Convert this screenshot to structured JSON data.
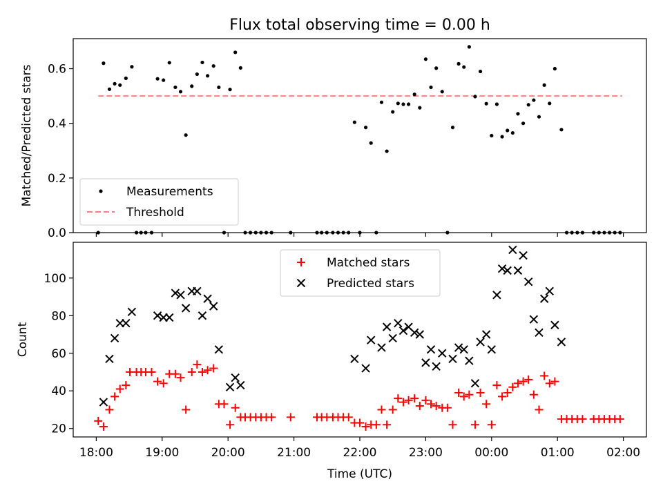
{
  "title": "Flux total observing time = 0.00 h",
  "chart_data": [
    {
      "type": "scatter",
      "panel": "top",
      "ylabel": "Matched/Predicted stars",
      "xlabel": "",
      "x_unit": "hours after 18:00 UTC",
      "xlim": [
        -0.35,
        8.35
      ],
      "ylim": [
        0,
        0.71
      ],
      "yticks": [
        0.0,
        0.2,
        0.4,
        0.6
      ],
      "ytick_labels": [
        "0.0",
        "0.2",
        "0.4",
        "0.6"
      ],
      "legend": "lower-left",
      "series": [
        {
          "name": "Measurements",
          "marker": "dot",
          "color": "#000000",
          "points": [
            [
              0.03,
              0.0
            ],
            [
              0.11,
              0.62
            ],
            [
              0.2,
              0.525
            ],
            [
              0.28,
              0.545
            ],
            [
              0.36,
              0.54
            ],
            [
              0.45,
              0.565
            ],
            [
              0.54,
              0.607
            ],
            [
              0.61,
              0.0
            ],
            [
              0.68,
              0.0
            ],
            [
              0.75,
              0.0
            ],
            [
              0.84,
              0.0
            ],
            [
              0.93,
              0.563
            ],
            [
              1.02,
              0.558
            ],
            [
              1.11,
              0.622
            ],
            [
              1.2,
              0.532
            ],
            [
              1.28,
              0.516
            ],
            [
              1.36,
              0.357
            ],
            [
              1.45,
              0.536
            ],
            [
              1.53,
              0.58
            ],
            [
              1.61,
              0.623
            ],
            [
              1.69,
              0.574
            ],
            [
              1.78,
              0.61
            ],
            [
              1.86,
              0.532
            ],
            [
              1.94,
              0.0
            ],
            [
              2.03,
              0.524
            ],
            [
              2.11,
              0.66
            ],
            [
              2.19,
              0.603
            ],
            [
              2.26,
              0.0
            ],
            [
              2.34,
              0.0
            ],
            [
              2.42,
              0.0
            ],
            [
              2.5,
              0.0
            ],
            [
              2.58,
              0.0
            ],
            [
              2.66,
              0.0
            ],
            [
              2.95,
              0.0
            ],
            [
              3.35,
              0.0
            ],
            [
              3.42,
              0.0
            ],
            [
              3.5,
              0.0
            ],
            [
              3.59,
              0.0
            ],
            [
              3.67,
              0.0
            ],
            [
              3.75,
              0.0
            ],
            [
              3.83,
              0.0
            ],
            [
              3.92,
              0.404
            ],
            [
              4.0,
              0.0
            ],
            [
              4.09,
              0.385
            ],
            [
              4.17,
              0.328
            ],
            [
              4.25,
              0.0
            ],
            [
              4.33,
              0.477
            ],
            [
              4.41,
              0.298
            ],
            [
              4.5,
              0.442
            ],
            [
              4.58,
              0.473
            ],
            [
              4.66,
              0.47
            ],
            [
              4.74,
              0.47
            ],
            [
              4.83,
              0.506
            ],
            [
              4.91,
              0.457
            ],
            [
              5.0,
              0.635
            ],
            [
              5.08,
              0.532
            ],
            [
              5.16,
              0.602
            ],
            [
              5.25,
              0.516
            ],
            [
              5.33,
              0.0
            ],
            [
              5.41,
              0.385
            ],
            [
              5.5,
              0.618
            ],
            [
              5.58,
              0.606
            ],
            [
              5.66,
              0.68
            ],
            [
              5.75,
              0.498
            ],
            [
              5.83,
              0.59
            ],
            [
              5.92,
              0.472
            ],
            [
              6.0,
              0.355
            ],
            [
              6.08,
              0.47
            ],
            [
              6.16,
              0.351
            ],
            [
              6.24,
              0.374
            ],
            [
              6.32,
              0.365
            ],
            [
              6.4,
              0.435
            ],
            [
              6.48,
              0.4
            ],
            [
              6.56,
              0.468
            ],
            [
              6.64,
              0.485
            ],
            [
              6.72,
              0.424
            ],
            [
              6.8,
              0.54
            ],
            [
              6.88,
              0.473
            ],
            [
              6.96,
              0.6
            ],
            [
              7.06,
              0.377
            ],
            [
              7.14,
              0.0
            ],
            [
              7.22,
              0.0
            ],
            [
              7.3,
              0.0
            ],
            [
              7.38,
              0.0
            ],
            [
              7.55,
              0.0
            ],
            [
              7.63,
              0.0
            ],
            [
              7.71,
              0.0
            ],
            [
              7.79,
              0.0
            ],
            [
              7.87,
              0.0
            ],
            [
              7.95,
              0.0
            ]
          ]
        },
        {
          "name": "Threshold",
          "line_style": "dashed",
          "color": "#ff7f7f",
          "x": [
            0.03,
            7.98
          ],
          "y": [
            0.5,
            0.5
          ]
        }
      ]
    },
    {
      "type": "scatter",
      "panel": "bottom",
      "ylabel": "Count",
      "xlabel": "Time (UTC)",
      "x_unit": "hours after 18:00 UTC",
      "xlim": [
        -0.35,
        8.35
      ],
      "ylim": [
        15.5,
        119
      ],
      "yticks": [
        20,
        40,
        60,
        80,
        100
      ],
      "ytick_labels": [
        "20",
        "40",
        "60",
        "80",
        "100"
      ],
      "xticks": [
        0,
        1,
        2,
        3,
        4,
        5,
        6,
        7,
        8
      ],
      "xtick_labels": [
        "18:00",
        "19:00",
        "20:00",
        "21:00",
        "22:00",
        "23:00",
        "00:00",
        "01:00",
        "02:00"
      ],
      "legend": "upper-center",
      "series": [
        {
          "name": "Matched stars",
          "marker": "plus",
          "color": "#ff0000",
          "points": [
            [
              0.03,
              24
            ],
            [
              0.11,
              21
            ],
            [
              0.2,
              30
            ],
            [
              0.28,
              37
            ],
            [
              0.36,
              41
            ],
            [
              0.45,
              43
            ],
            [
              0.51,
              50
            ],
            [
              0.61,
              50
            ],
            [
              0.68,
              50
            ],
            [
              0.75,
              50
            ],
            [
              0.84,
              50
            ],
            [
              0.93,
              45
            ],
            [
              1.02,
              44
            ],
            [
              1.11,
              49
            ],
            [
              1.2,
              49
            ],
            [
              1.28,
              47
            ],
            [
              1.36,
              30
            ],
            [
              1.45,
              50
            ],
            [
              1.53,
              54
            ],
            [
              1.61,
              50
            ],
            [
              1.69,
              51
            ],
            [
              1.78,
              52
            ],
            [
              1.86,
              33
            ],
            [
              1.94,
              33
            ],
            [
              2.03,
              22
            ],
            [
              2.11,
              31
            ],
            [
              2.19,
              26
            ],
            [
              2.26,
              26
            ],
            [
              2.34,
              26
            ],
            [
              2.42,
              26
            ],
            [
              2.5,
              26
            ],
            [
              2.58,
              26
            ],
            [
              2.66,
              26
            ],
            [
              2.95,
              26
            ],
            [
              3.35,
              26
            ],
            [
              3.42,
              26
            ],
            [
              3.5,
              26
            ],
            [
              3.59,
              26
            ],
            [
              3.67,
              26
            ],
            [
              3.75,
              26
            ],
            [
              3.83,
              26
            ],
            [
              3.92,
              23
            ],
            [
              4.0,
              23
            ],
            [
              4.09,
              21
            ],
            [
              4.17,
              22
            ],
            [
              4.25,
              22
            ],
            [
              4.33,
              30
            ],
            [
              4.41,
              22
            ],
            [
              4.5,
              30
            ],
            [
              4.58,
              36
            ],
            [
              4.66,
              34
            ],
            [
              4.74,
              35
            ],
            [
              4.83,
              36
            ],
            [
              4.91,
              32
            ],
            [
              5.0,
              35
            ],
            [
              5.08,
              33
            ],
            [
              5.16,
              32
            ],
            [
              5.25,
              31
            ],
            [
              5.33,
              31
            ],
            [
              5.41,
              22
            ],
            [
              5.5,
              39
            ],
            [
              5.58,
              37
            ],
            [
              5.66,
              38
            ],
            [
              5.75,
              22
            ],
            [
              5.83,
              39
            ],
            [
              5.92,
              33
            ],
            [
              6.0,
              22
            ],
            [
              6.08,
              43
            ],
            [
              6.16,
              37
            ],
            [
              6.24,
              39
            ],
            [
              6.32,
              42
            ],
            [
              6.4,
              44
            ],
            [
              6.48,
              45
            ],
            [
              6.56,
              46
            ],
            [
              6.64,
              38
            ],
            [
              6.72,
              30
            ],
            [
              6.8,
              48
            ],
            [
              6.88,
              44
            ],
            [
              6.96,
              45
            ],
            [
              7.06,
              25
            ],
            [
              7.14,
              25
            ],
            [
              7.22,
              25
            ],
            [
              7.3,
              25
            ],
            [
              7.38,
              25
            ],
            [
              7.55,
              25
            ],
            [
              7.63,
              25
            ],
            [
              7.71,
              25
            ],
            [
              7.79,
              25
            ],
            [
              7.87,
              25
            ],
            [
              7.95,
              25
            ]
          ]
        },
        {
          "name": "Predicted stars",
          "marker": "x",
          "color": "#000000",
          "points": [
            [
              0.11,
              34
            ],
            [
              0.2,
              57
            ],
            [
              0.28,
              68
            ],
            [
              0.36,
              76
            ],
            [
              0.45,
              76
            ],
            [
              0.54,
              82
            ],
            [
              0.93,
              80
            ],
            [
              1.02,
              79
            ],
            [
              1.11,
              79
            ],
            [
              1.2,
              92
            ],
            [
              1.28,
              91
            ],
            [
              1.36,
              84
            ],
            [
              1.45,
              93
            ],
            [
              1.53,
              93
            ],
            [
              1.61,
              80
            ],
            [
              1.69,
              89
            ],
            [
              1.78,
              85
            ],
            [
              1.86,
              62
            ],
            [
              2.03,
              42
            ],
            [
              2.11,
              47
            ],
            [
              2.19,
              43
            ],
            [
              3.92,
              57
            ],
            [
              4.09,
              52
            ],
            [
              4.17,
              67
            ],
            [
              4.33,
              63
            ],
            [
              4.41,
              74
            ],
            [
              4.5,
              68
            ],
            [
              4.58,
              76
            ],
            [
              4.66,
              72
            ],
            [
              4.74,
              74
            ],
            [
              4.83,
              71
            ],
            [
              4.91,
              70
            ],
            [
              5.0,
              55
            ],
            [
              5.08,
              62
            ],
            [
              5.16,
              53
            ],
            [
              5.25,
              60
            ],
            [
              5.41,
              57
            ],
            [
              5.5,
              63
            ],
            [
              5.58,
              62
            ],
            [
              5.66,
              56
            ],
            [
              5.75,
              44
            ],
            [
              5.83,
              66
            ],
            [
              5.92,
              70
            ],
            [
              6.0,
              62
            ],
            [
              6.08,
              91
            ],
            [
              6.16,
              105
            ],
            [
              6.24,
              104
            ],
            [
              6.32,
              115
            ],
            [
              6.4,
              104
            ],
            [
              6.48,
              112
            ],
            [
              6.56,
              98
            ],
            [
              6.64,
              78
            ],
            [
              6.72,
              71
            ],
            [
              6.8,
              89
            ],
            [
              6.88,
              93
            ],
            [
              6.96,
              75
            ],
            [
              7.06,
              66
            ]
          ]
        }
      ]
    }
  ]
}
